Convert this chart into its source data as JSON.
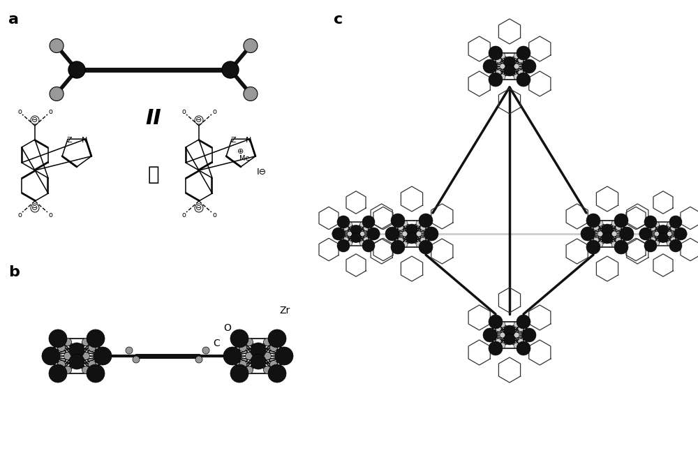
{
  "bg_color": "#ffffff",
  "label_a": "a",
  "label_b": "b",
  "label_c": "c",
  "label_II": "II",
  "label_he": "和",
  "label_Zr": "Zr",
  "label_O": "O",
  "label_C": "C",
  "label_IO": "I⊖",
  "dark_atom": "#111111",
  "gray_atom": "#999999",
  "light_gray": "#cccccc",
  "bond_color": "#111111"
}
